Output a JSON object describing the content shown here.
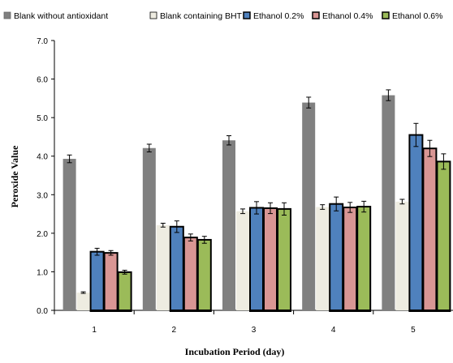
{
  "chart_data": {
    "type": "bar",
    "title": "",
    "xlabel": "Incubation Period (day)",
    "ylabel": "Peroxide  Value",
    "categories": [
      "1",
      "2",
      "3",
      "4",
      "5"
    ],
    "ylim": [
      0,
      7
    ],
    "yticks": [
      "0.0",
      "1.0",
      "2.0",
      "3.0",
      "4.0",
      "5.0",
      "6.0",
      "7.0"
    ],
    "grid": false,
    "legend_position": "top",
    "error_bars": true,
    "series": [
      {
        "name": "Blank without antioxidant",
        "color": "#808080",
        "values": [
          3.93,
          4.21,
          4.41,
          5.39,
          5.58
        ],
        "errors": [
          0.1,
          0.1,
          0.12,
          0.14,
          0.14
        ]
      },
      {
        "name": "Blank containing BHT",
        "color": "#eeece1",
        "values": [
          0.46,
          2.21,
          2.57,
          2.68,
          2.82
        ],
        "errors": [
          0.02,
          0.05,
          0.06,
          0.06,
          0.06
        ]
      },
      {
        "name": "Ethanol 0.2%",
        "color": "#4f81bd",
        "values": [
          1.52,
          2.17,
          2.66,
          2.76,
          4.55
        ],
        "errors": [
          0.09,
          0.15,
          0.16,
          0.18,
          0.3
        ]
      },
      {
        "name": "Ethanol 0.4%",
        "color": "#d99694",
        "values": [
          1.49,
          1.89,
          2.65,
          2.67,
          4.2
        ],
        "errors": [
          0.06,
          0.09,
          0.14,
          0.13,
          0.21
        ]
      },
      {
        "name": "Ethanol 0.6%",
        "color": "#9bbb59",
        "values": [
          0.99,
          1.83,
          2.63,
          2.69,
          3.86
        ],
        "errors": [
          0.05,
          0.09,
          0.16,
          0.14,
          0.2
        ]
      }
    ]
  }
}
